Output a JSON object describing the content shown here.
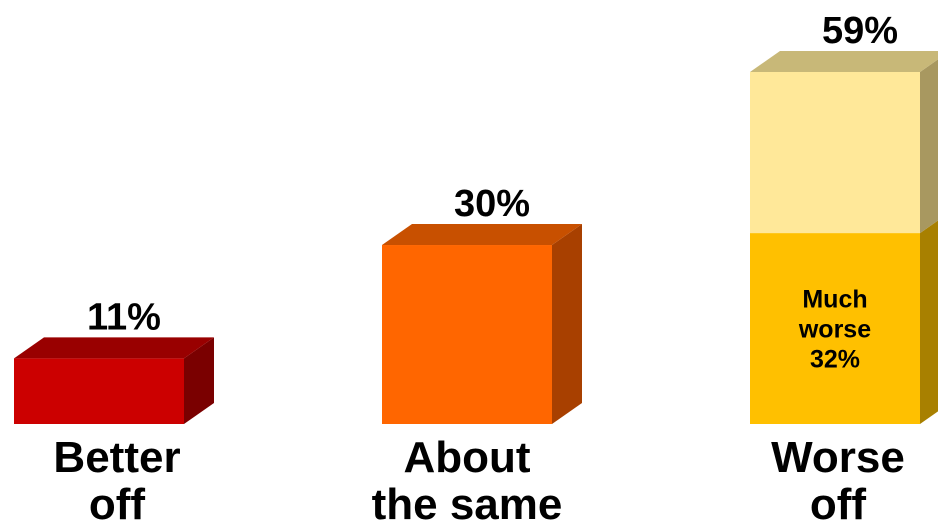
{
  "chart_data": {
    "type": "bar",
    "stacked": true,
    "style": "3d",
    "title": "",
    "xlabel": "",
    "ylabel": "",
    "ylim": [
      0,
      60
    ],
    "grid": false,
    "legend": "none",
    "bars": [
      {
        "category": [
          "Better",
          "off"
        ],
        "total": 11,
        "total_label": "11%",
        "segments": [
          {
            "value": 11,
            "label": "",
            "front": "#cc0000",
            "top": "#990000",
            "side": "#7a0000"
          }
        ]
      },
      {
        "category": [
          "About",
          "the same"
        ],
        "total": 30,
        "total_label": "30%",
        "segments": [
          {
            "value": 30,
            "label": "",
            "front": "#ff6600",
            "top": "#c85000",
            "side": "#a84000"
          }
        ]
      },
      {
        "category": [
          "Worse",
          "off"
        ],
        "total": 59,
        "total_label": "59%",
        "segments": [
          {
            "value": 32,
            "label": [
              "Much",
              "worse",
              "32%"
            ],
            "front": "#ffc000",
            "top": "#c89600",
            "side": "#a88000"
          },
          {
            "value": 27,
            "label": "",
            "front": "#ffe899",
            "top": "#c8b878",
            "side": "#a89860"
          }
        ]
      }
    ]
  }
}
